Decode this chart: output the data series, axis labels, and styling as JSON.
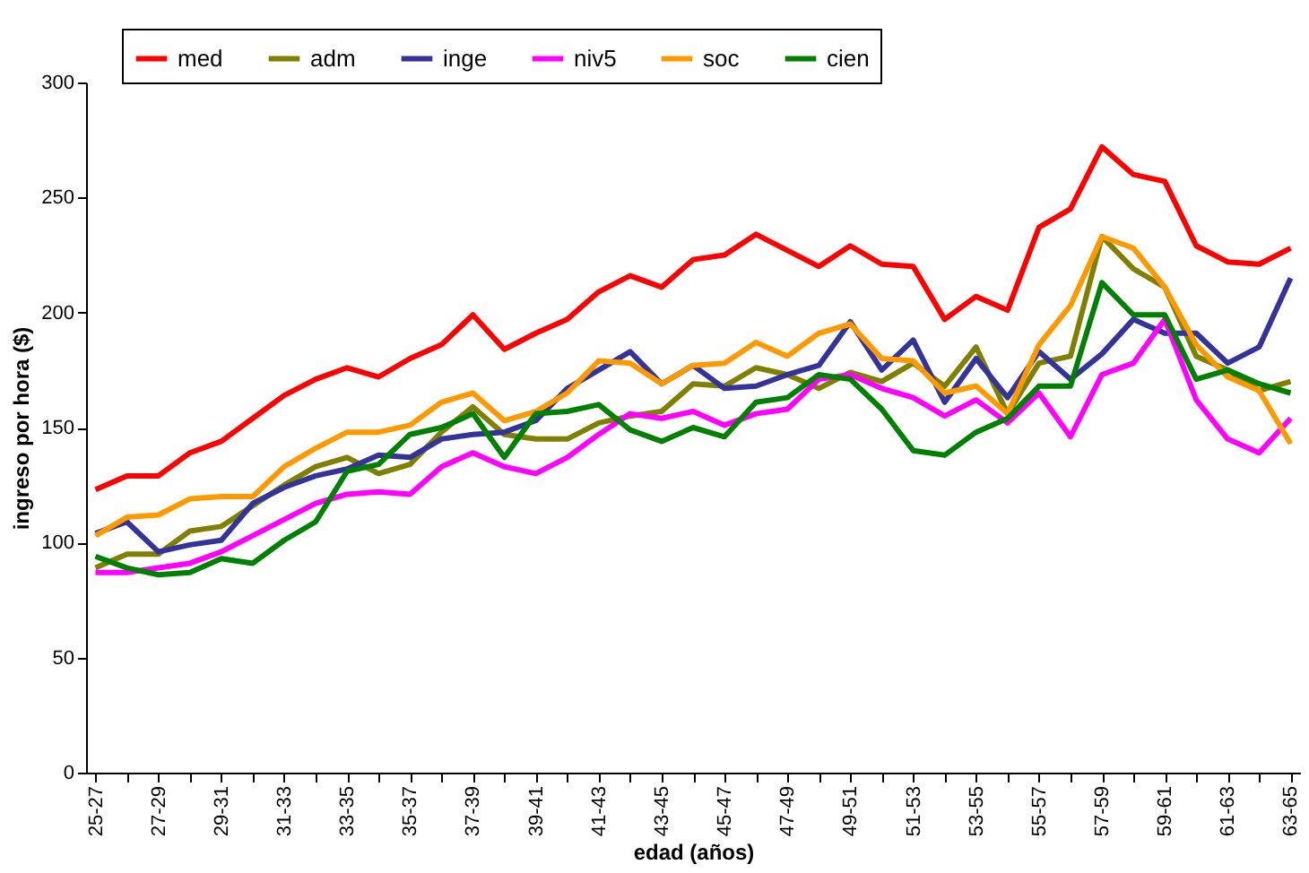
{
  "chart_data": {
    "type": "line",
    "xlabel": "edad (años)",
    "ylabel": "ingreso por hora ($)",
    "categories": [
      "25-27",
      null,
      "27-29",
      null,
      "29-31",
      null,
      "31-33",
      null,
      "33-35",
      null,
      "35-37",
      null,
      "37-39",
      null,
      "39-41",
      null,
      "41-43",
      null,
      "43-45",
      null,
      "45-47",
      null,
      "47-49",
      null,
      "49-51",
      null,
      "51-53",
      null,
      "53-55",
      null,
      "55-57",
      null,
      "57-59",
      null,
      "59-61",
      null,
      "61-63",
      null,
      "63-65"
    ],
    "ylim": [
      0,
      300
    ],
    "yticks": [
      0,
      50,
      100,
      150,
      200,
      250,
      300
    ],
    "grid": false,
    "legend": "top left",
    "line_style": "solid",
    "marker": "none",
    "series": [
      {
        "name": "med",
        "color": "#ff0000",
        "values": [
          123,
          129,
          129,
          139,
          144,
          154,
          164,
          171,
          176,
          172,
          180,
          186,
          199,
          184,
          191,
          197,
          209,
          216,
          211,
          223,
          225,
          234,
          227,
          220,
          229,
          221,
          220,
          197,
          207,
          201,
          237,
          245,
          272,
          260,
          257,
          229,
          222,
          221,
          228
        ]
      },
      {
        "name": "adm",
        "color": "#808000",
        "values": [
          89,
          95,
          95,
          105,
          107,
          116,
          125,
          133,
          137,
          130,
          134,
          148,
          159,
          147,
          145,
          145,
          152,
          155,
          157,
          169,
          168,
          176,
          173,
          167,
          174,
          170,
          178,
          168,
          185,
          156,
          178,
          181,
          233,
          219,
          211,
          181,
          175,
          166,
          170
        ]
      },
      {
        "name": "inge",
        "color": "#333399",
        "values": [
          104,
          109,
          96,
          99,
          101,
          117,
          124,
          129,
          132,
          138,
          137,
          145,
          147,
          148,
          153,
          167,
          175,
          183,
          169,
          177,
          167,
          168,
          173,
          177,
          196,
          175,
          188,
          161,
          180,
          163,
          183,
          171,
          182,
          197,
          191,
          191,
          178,
          185,
          215
        ]
      },
      {
        "name": "niv5",
        "color": "#ff00ff",
        "values": [
          87,
          87,
          89,
          91,
          96,
          103,
          110,
          117,
          121,
          122,
          121,
          133,
          139,
          133,
          130,
          137,
          147,
          156,
          154,
          157,
          151,
          156,
          158,
          171,
          173,
          167,
          163,
          155,
          162,
          152,
          165,
          146,
          173,
          178,
          197,
          162,
          145,
          139,
          154
        ]
      },
      {
        "name": "soc",
        "color": "#ff9900",
        "values": [
          103,
          111,
          112,
          119,
          120,
          120,
          133,
          141,
          148,
          148,
          151,
          161,
          165,
          153,
          157,
          165,
          179,
          178,
          169,
          177,
          178,
          187,
          181,
          191,
          195,
          180,
          179,
          165,
          168,
          156,
          186,
          203,
          233,
          228,
          211,
          186,
          172,
          166,
          143
        ]
      },
      {
        "name": "cien",
        "color": "#008000",
        "values": [
          94,
          89,
          86,
          87,
          93,
          91,
          101,
          109,
          131,
          134,
          147,
          150,
          156,
          137,
          156,
          157,
          160,
          149,
          144,
          150,
          146,
          161,
          163,
          173,
          171,
          158,
          140,
          138,
          148,
          154,
          168,
          168,
          213,
          199,
          199,
          171,
          175,
          169,
          165
        ]
      }
    ]
  }
}
